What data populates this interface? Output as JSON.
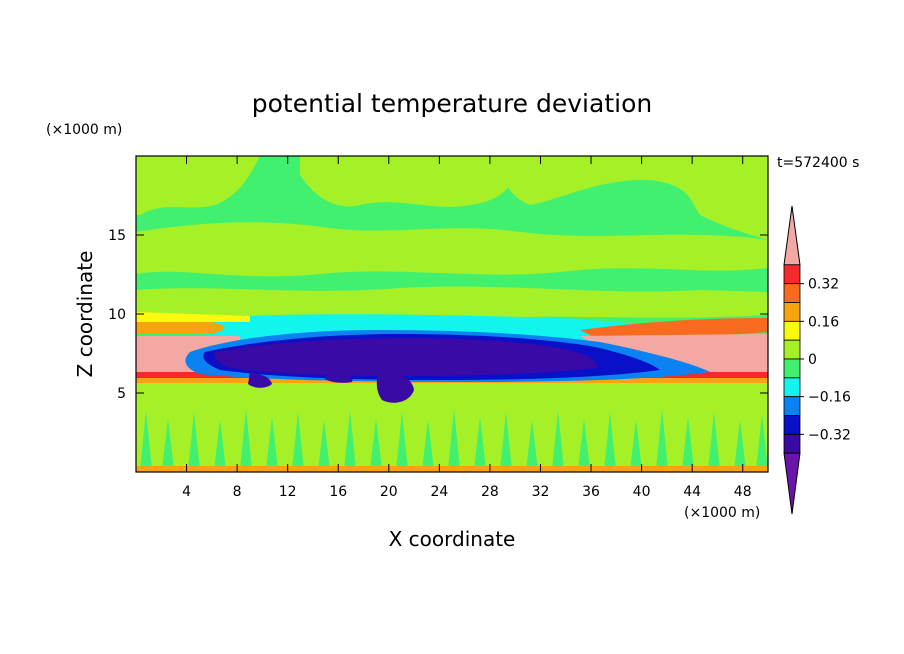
{
  "chart_data": {
    "type": "heatmap",
    "title": "potential temperature deviation",
    "time_label": "t=572400 s",
    "xlabel": "X coordinate",
    "ylabel": "Z coordinate",
    "x_unit": "(×1000 m)",
    "y_unit": "(×1000 m)",
    "xlim": [
      0,
      50
    ],
    "ylim": [
      0,
      20
    ],
    "x_ticks": [
      4,
      8,
      12,
      16,
      20,
      24,
      28,
      32,
      36,
      40,
      44,
      48
    ],
    "y_ticks": [
      5,
      10,
      15
    ],
    "colorbar": {
      "labels": [
        {
          "value": 0.32,
          "text": "0.32"
        },
        {
          "value": 0.16,
          "text": "0.16"
        },
        {
          "value": 0,
          "text": "0"
        },
        {
          "value": -0.16,
          "text": "−0.16"
        },
        {
          "value": -0.32,
          "text": "−0.32"
        }
      ],
      "levels": [
        {
          "lo": 0.4,
          "hi": 0.48,
          "color": "#f4a8a4",
          "end": "max"
        },
        {
          "lo": 0.32,
          "hi": 0.4,
          "color": "#f52a2a"
        },
        {
          "lo": 0.24,
          "hi": 0.32,
          "color": "#f86a1e"
        },
        {
          "lo": 0.16,
          "hi": 0.24,
          "color": "#f8a410"
        },
        {
          "lo": 0.08,
          "hi": 0.16,
          "color": "#fafa10"
        },
        {
          "lo": 0.0,
          "hi": 0.08,
          "color": "#a6f028"
        },
        {
          "lo": -0.08,
          "hi": 0.0,
          "color": "#42f070"
        },
        {
          "lo": -0.16,
          "hi": -0.08,
          "color": "#12f4ee"
        },
        {
          "lo": -0.24,
          "hi": -0.16,
          "color": "#0a82f2"
        },
        {
          "lo": -0.32,
          "hi": -0.24,
          "color": "#0a10c8"
        },
        {
          "lo": -0.4,
          "hi": -0.32,
          "color": "#3a0aa6"
        },
        {
          "lo": -0.48,
          "hi": -0.4,
          "color": "#6c14aa",
          "end": "min"
        }
      ]
    },
    "field_layers": [
      {
        "name": "background-upper",
        "color": "#a6f028",
        "z": [
          10.5,
          19.5
        ]
      },
      {
        "name": "noisy-lower",
        "color": "#a6f028",
        "z": [
          0.3,
          5.5
        ]
      },
      {
        "name": "warm-layer",
        "color": "#f4a8a4",
        "z": [
          6.0,
          8.0
        ]
      },
      {
        "name": "cold-anvil",
        "color": "#3a0aa6",
        "x": [
          5.5,
          38.5
        ],
        "z": [
          5.5,
          8.8
        ]
      }
    ]
  }
}
